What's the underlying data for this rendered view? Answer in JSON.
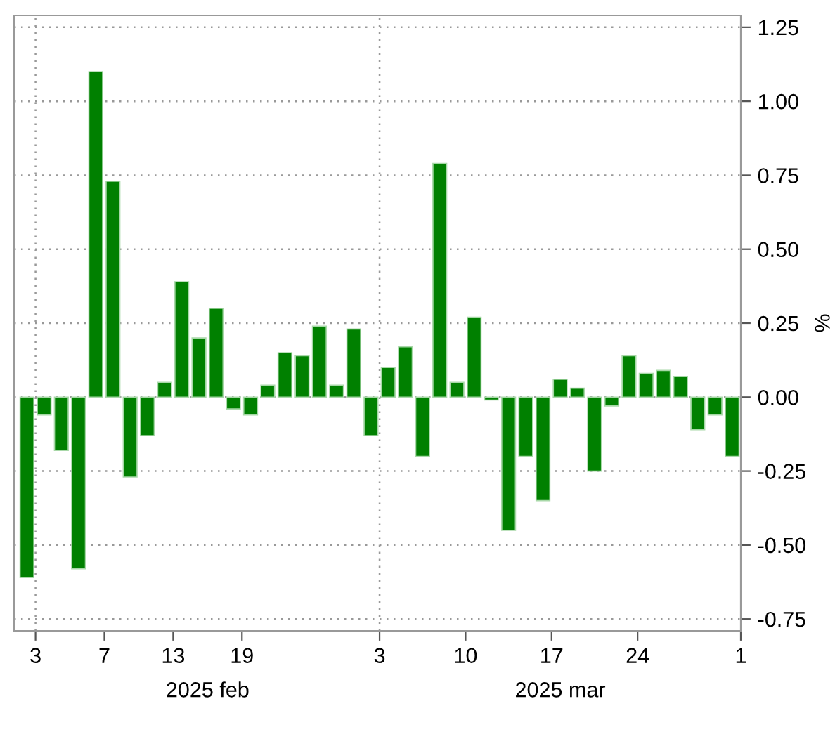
{
  "chart_data": {
    "type": "bar",
    "categories": [
      "3",
      null,
      null,
      null,
      "7",
      null,
      null,
      null,
      "13",
      null,
      null,
      null,
      "19",
      null,
      null,
      null,
      null,
      null,
      null,
      null,
      "3",
      null,
      null,
      null,
      null,
      "10",
      null,
      null,
      null,
      null,
      "17",
      null,
      null,
      null,
      null,
      "24",
      null,
      null,
      null,
      null,
      null,
      "1"
    ],
    "series": [
      {
        "color": "#008000",
        "values": [
          -0.61,
          -0.06,
          -0.18,
          -0.58,
          1.1,
          0.73,
          -0.27,
          -0.13,
          0.05,
          0.39,
          0.2,
          0.3,
          -0.04,
          -0.06,
          0.04,
          0.15,
          0.14,
          0.24,
          0.04,
          0.23,
          -0.13,
          0.1,
          0.17,
          -0.2,
          0.79,
          0.05,
          0.27,
          -0.01,
          -0.45,
          -0.2,
          -0.35,
          0.06,
          0.03,
          -0.25,
          -0.03,
          0.14,
          0.08,
          0.09,
          0.07,
          -0.11,
          -0.06,
          -0.2
        ]
      }
    ],
    "ylabel": "%",
    "ylim": [
      -0.79,
      1.29
    ],
    "yticks": [
      {
        "value": -0.75,
        "label": "-0.75"
      },
      {
        "value": -0.5,
        "label": "-0.50"
      },
      {
        "value": -0.25,
        "label": "-0.25"
      },
      {
        "value": 0,
        "label": "0.00"
      },
      {
        "value": 0.25,
        "label": "0.25"
      },
      {
        "value": 0.5,
        "label": "0.50"
      },
      {
        "value": 0.75,
        "label": "0.75"
      },
      {
        "value": 1,
        "label": "1.00"
      },
      {
        "value": 1.25,
        "label": "1.25"
      }
    ],
    "annotations": [
      "2025 feb",
      "2025 mar"
    ],
    "grid": true
  }
}
